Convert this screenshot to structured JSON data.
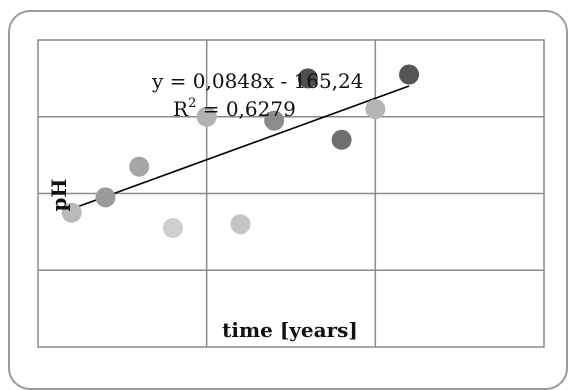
{
  "chart_data": {
    "type": "scatter",
    "title": "",
    "xlabel": "time [years]",
    "ylabel": "pH",
    "xlim": [
      0,
      3
    ],
    "ylim": [
      0,
      4
    ],
    "grid": true,
    "x": [
      0.2,
      0.4,
      0.6,
      0.8,
      1.0,
      1.2,
      1.4,
      1.6,
      1.8,
      2.0,
      2.2
    ],
    "y": [
      1.75,
      1.95,
      2.35,
      1.55,
      3.0,
      1.6,
      2.95,
      3.5,
      2.7,
      3.1,
      3.55
    ],
    "point_colors": [
      "#b9b9b9",
      "#9a9a9a",
      "#a6a6a6",
      "#cfcfcf",
      "#b2b2b2",
      "#c4c4c4",
      "#8c8c8c",
      "#4f4f4f",
      "#6f6f6f",
      "#b5b5b5",
      "#555555"
    ],
    "trendline": {
      "x_start": 0.2,
      "y_start": 1.8,
      "x_end": 2.2,
      "y_end": 3.4,
      "color": "#000000"
    },
    "annotations": {
      "equation": "y = 0,0848x - 165,24",
      "r2_prefix": "R",
      "r2_sup": "2",
      "r2_value": " = 0,6279"
    }
  }
}
